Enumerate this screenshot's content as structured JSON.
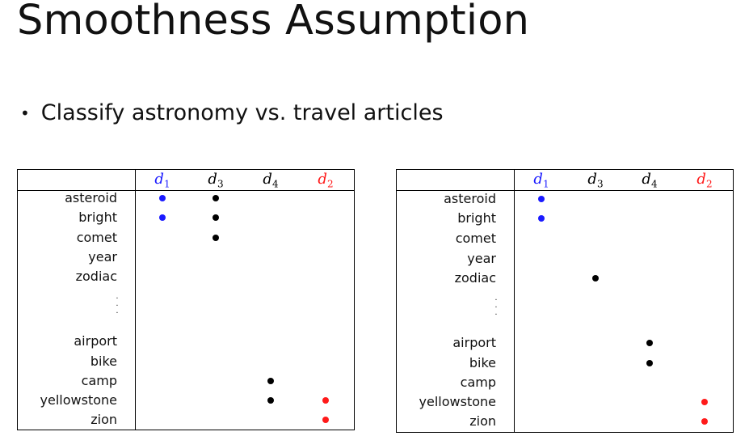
{
  "title": "Smoothness Assumption",
  "bullet": {
    "symbol": "•",
    "text": "Classify astronomy vs. travel articles"
  },
  "colors": {
    "blue": "#1a1aff",
    "black": "#000000",
    "red": "#ff1a1a"
  },
  "tables": [
    {
      "columns": [
        {
          "letter": "d",
          "index": "1",
          "color": "blue"
        },
        {
          "letter": "d",
          "index": "3",
          "color": "black"
        },
        {
          "letter": "d",
          "index": "4",
          "color": "black"
        },
        {
          "letter": "d",
          "index": "2",
          "color": "red"
        }
      ],
      "rows": [
        "asteroid",
        "bright",
        "comet",
        "year",
        "zodiac",
        "airport",
        "bike",
        "camp",
        "yellowstone",
        "zion"
      ],
      "ellipsis": ".",
      "marks": [
        {
          "row": "asteroid",
          "col": 0
        },
        {
          "row": "asteroid",
          "col": 1
        },
        {
          "row": "bright",
          "col": 0
        },
        {
          "row": "bright",
          "col": 1
        },
        {
          "row": "comet",
          "col": 1
        },
        {
          "row": "camp",
          "col": 2
        },
        {
          "row": "yellowstone",
          "col": 2
        },
        {
          "row": "yellowstone",
          "col": 3
        },
        {
          "row": "zion",
          "col": 3
        }
      ]
    },
    {
      "columns": [
        {
          "letter": "d",
          "index": "1",
          "color": "blue"
        },
        {
          "letter": "d",
          "index": "3",
          "color": "black"
        },
        {
          "letter": "d",
          "index": "4",
          "color": "black"
        },
        {
          "letter": "d",
          "index": "2",
          "color": "red"
        }
      ],
      "rows": [
        "asteroid",
        "bright",
        "comet",
        "year",
        "zodiac",
        "airport",
        "bike",
        "camp",
        "yellowstone",
        "zion"
      ],
      "ellipsis": ".",
      "marks": [
        {
          "row": "asteroid",
          "col": 0
        },
        {
          "row": "bright",
          "col": 0
        },
        {
          "row": "zodiac",
          "col": 1
        },
        {
          "row": "airport",
          "col": 2
        },
        {
          "row": "bike",
          "col": 2
        },
        {
          "row": "yellowstone",
          "col": 3
        },
        {
          "row": "zion",
          "col": 3
        }
      ]
    }
  ]
}
